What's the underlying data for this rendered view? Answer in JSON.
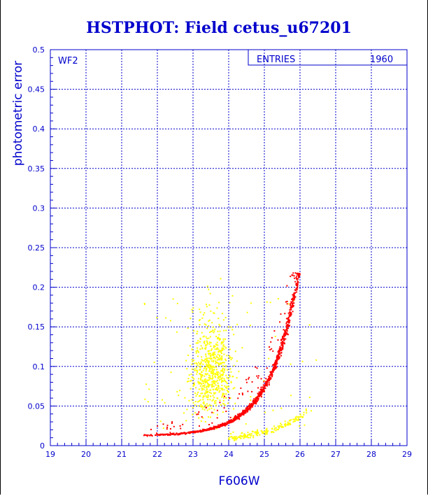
{
  "chart_data": {
    "type": "scatter",
    "title": "HSTPHOT: Field cetus_u67201",
    "xlabel": "F606W",
    "ylabel": "photometric error",
    "xlim": [
      19,
      29
    ],
    "ylim": [
      0,
      0.5
    ],
    "x_ticks": [
      "19",
      "20",
      "21",
      "22",
      "23",
      "24",
      "25",
      "26",
      "27",
      "28",
      "29"
    ],
    "y_ticks": [
      "0",
      "0.05",
      "0.1",
      "0.15",
      "0.2",
      "0.25",
      "0.3",
      "0.35",
      "0.4",
      "0.45",
      "0.5"
    ],
    "grid": true,
    "panel_label": "WF2",
    "stats_box": {
      "label": "ENTRIES",
      "value": "1960"
    },
    "colors": {
      "text": "#0000cc",
      "grid": "#0000cc",
      "red_series": "#ff0000",
      "yellow_series": "#ffff00"
    },
    "series": [
      {
        "color": "red",
        "description_points": [
          [
            21.6,
            0.012
          ],
          [
            22.0,
            0.015
          ],
          [
            22.5,
            0.018
          ],
          [
            23.0,
            0.024
          ],
          [
            23.5,
            0.032
          ],
          [
            24.0,
            0.044
          ],
          [
            24.3,
            0.055
          ],
          [
            24.6,
            0.07
          ],
          [
            24.9,
            0.09
          ],
          [
            25.2,
            0.115
          ],
          [
            25.45,
            0.14
          ],
          [
            25.65,
            0.165
          ],
          [
            25.8,
            0.19
          ],
          [
            25.95,
            0.215
          ]
        ],
        "x_range": [
          21.6,
          26.0
        ],
        "y_range": [
          0.01,
          0.22
        ]
      },
      {
        "color": "yellow",
        "clusters": [
          {
            "x_center": 23.5,
            "y_center": 0.09,
            "x_spread": 0.5,
            "y_spread": 0.035
          },
          {
            "x_center": 25.0,
            "y_center": 0.018,
            "x_spread": 1.0,
            "y_spread": 0.006
          }
        ],
        "x_range": [
          21.5,
          26.6
        ],
        "y_range": [
          0.005,
          0.21
        ]
      }
    ]
  }
}
